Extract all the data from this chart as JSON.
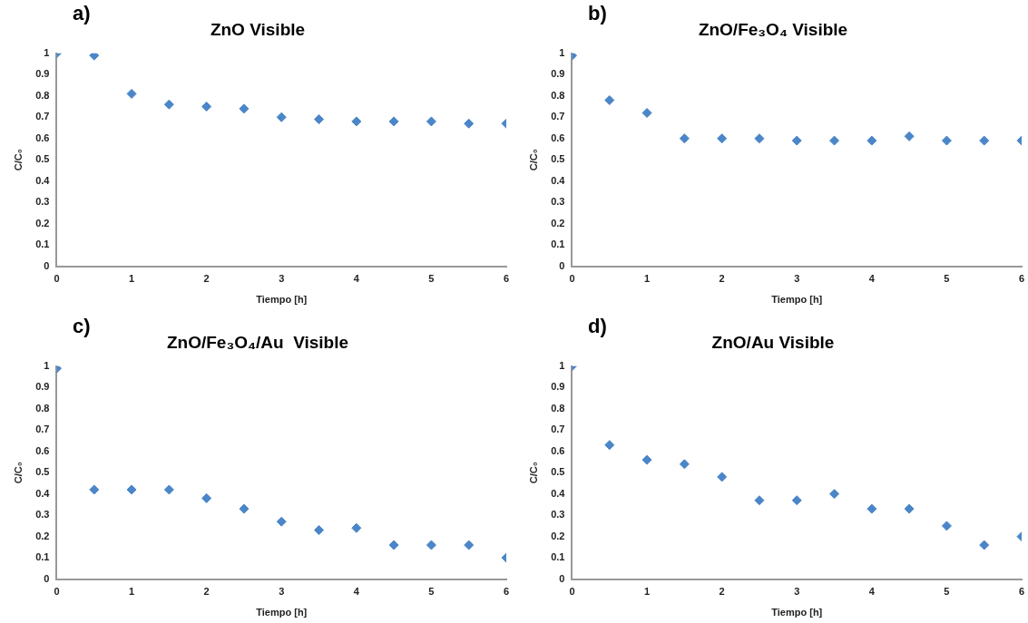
{
  "chart_data": [
    {
      "type": "scatter",
      "title": "ZnO Visible",
      "annotations": [
        "a)"
      ],
      "xlabel": "Tiempo [h]",
      "ylabel": "C/C₀",
      "marker": "diamond",
      "grid": false,
      "legend": false,
      "x": [
        0,
        0.5,
        1,
        1.5,
        2,
        2.5,
        3,
        3.5,
        4,
        4.5,
        5,
        5.5,
        6
      ],
      "xlim": [
        0,
        6
      ],
      "xticks": [
        0,
        1,
        2,
        3,
        4,
        5,
        6
      ],
      "ylim": [
        0,
        1
      ],
      "yticks": [
        0,
        0.1,
        0.2,
        0.3,
        0.4,
        0.5,
        0.6,
        0.7,
        0.8,
        0.9,
        1
      ],
      "series": [
        {
          "color": "#4a86c8",
          "values": [
            1,
            0.99,
            0.81,
            0.76,
            0.75,
            0.74,
            0.7,
            0.69,
            0.68,
            0.68,
            0.68,
            0.67,
            0.67
          ]
        }
      ]
    },
    {
      "type": "scatter",
      "title": "ZnO/Fe₃O₄ Visible",
      "annotations": [
        "b)"
      ],
      "xlabel": "Tiempo [h]",
      "ylabel": "C/C₀",
      "marker": "diamond",
      "grid": false,
      "legend": false,
      "x": [
        0,
        0.5,
        1,
        1.5,
        2,
        2.5,
        3,
        3.5,
        4,
        4.5,
        5,
        5.5,
        6
      ],
      "xlim": [
        0,
        6
      ],
      "xticks": [
        0,
        1,
        2,
        3,
        4,
        5,
        6
      ],
      "ylim": [
        0,
        1
      ],
      "yticks": [
        0,
        0.1,
        0.2,
        0.3,
        0.4,
        0.5,
        0.6,
        0.7,
        0.8,
        0.9,
        1
      ],
      "series": [
        {
          "color": "#4a86c8",
          "values": [
            0.99,
            0.78,
            0.72,
            0.6,
            0.6,
            0.6,
            0.59,
            0.59,
            0.59,
            0.61,
            0.59,
            0.59,
            0.59
          ]
        }
      ]
    },
    {
      "type": "scatter",
      "title": "ZnO/Fe₃O₄/Au  Visible",
      "annotations": [
        "c)"
      ],
      "xlabel": "Tiempo [h]",
      "ylabel": "C/C₀",
      "marker": "diamond",
      "grid": false,
      "legend": false,
      "x": [
        0,
        0.5,
        1,
        1.5,
        2,
        2.5,
        3,
        3.5,
        4,
        4.5,
        5,
        5.5,
        6
      ],
      "xlim": [
        0,
        6
      ],
      "xticks": [
        0,
        1,
        2,
        3,
        4,
        5,
        6
      ],
      "ylim": [
        0,
        1
      ],
      "yticks": [
        0,
        0.1,
        0.2,
        0.3,
        0.4,
        0.5,
        0.6,
        0.7,
        0.8,
        0.9,
        1
      ],
      "series": [
        {
          "color": "#4a86c8",
          "values": [
            0.99,
            0.42,
            0.42,
            0.42,
            0.38,
            0.33,
            0.27,
            0.23,
            0.24,
            0.16,
            0.16,
            0.16,
            0.1
          ]
        }
      ]
    },
    {
      "type": "scatter",
      "title": "ZnO/Au Visible",
      "annotations": [
        "d)"
      ],
      "xlabel": "Tiempo [h]",
      "ylabel": "C/C₀",
      "marker": "diamond",
      "grid": false,
      "legend": false,
      "x": [
        0,
        0.5,
        1,
        1.5,
        2,
        2.5,
        3,
        3.5,
        4,
        4.5,
        5,
        5.5,
        6
      ],
      "xlim": [
        0,
        6
      ],
      "xticks": [
        0,
        1,
        2,
        3,
        4,
        5,
        6
      ],
      "ylim": [
        0,
        1
      ],
      "yticks": [
        0,
        0.1,
        0.2,
        0.3,
        0.4,
        0.5,
        0.6,
        0.7,
        0.8,
        0.9,
        1
      ],
      "series": [
        {
          "color": "#4a86c8",
          "values": [
            1,
            0.63,
            0.56,
            0.54,
            0.48,
            0.37,
            0.37,
            0.4,
            0.33,
            0.33,
            0.25,
            0.16,
            0.2
          ]
        }
      ]
    }
  ]
}
